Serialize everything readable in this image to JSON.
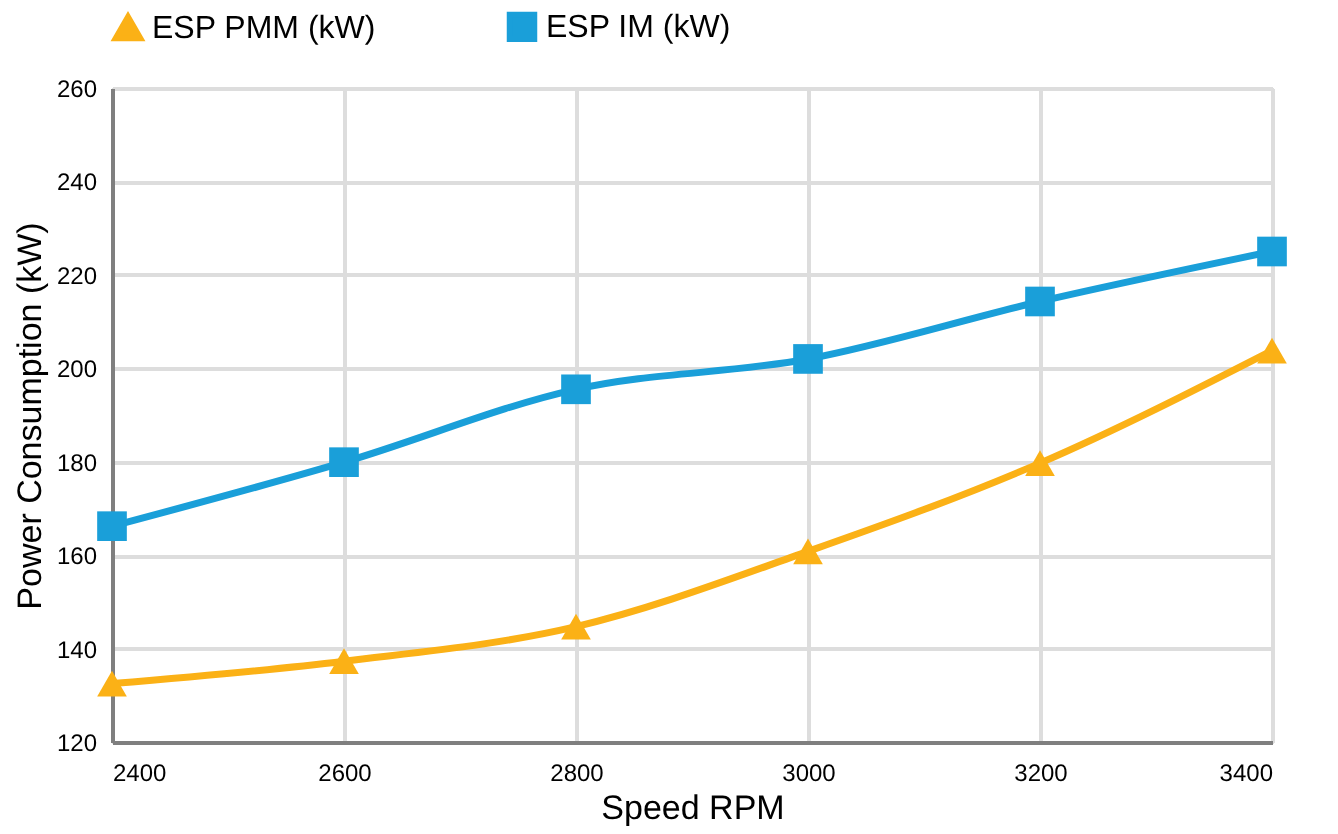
{
  "chart_data": {
    "type": "line",
    "xlabel": "Speed RPM",
    "ylabel": "Power Consumption (kW)",
    "x": [
      2400,
      2600,
      2800,
      3000,
      3200,
      3400
    ],
    "series": [
      {
        "name": "ESP PMM (kW)",
        "color": "#fbb116",
        "marker": "triangle",
        "values": [
          132.5,
          137.3,
          144.7,
          160.8,
          179.7,
          203.8
        ]
      },
      {
        "name": "ESP IM (kW)",
        "color": "#1a9fd9",
        "marker": "square",
        "values": [
          166.2,
          179.9,
          195.5,
          202,
          214.3,
          225
        ]
      }
    ],
    "xlim": [
      2400,
      3400
    ],
    "xticks": [
      2400,
      2600,
      2800,
      3000,
      3200,
      3400
    ],
    "ylim": [
      120,
      260
    ],
    "yticks": [
      120,
      140,
      160,
      180,
      200,
      220,
      240,
      260
    ],
    "grid": true,
    "legend": "top",
    "line_style": "solid"
  }
}
